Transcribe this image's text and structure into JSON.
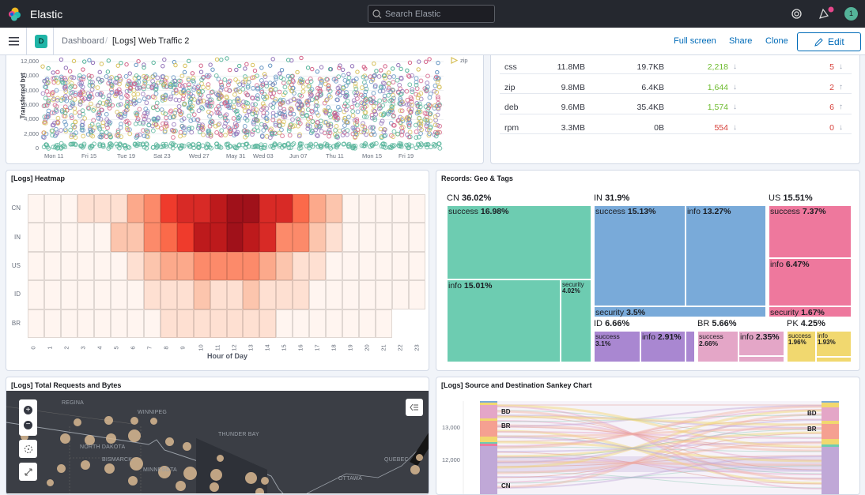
{
  "header": {
    "app_title": "Elastic",
    "search_placeholder": "Search Elastic",
    "avatar_initial": "1",
    "icons": [
      "elastic-logo",
      "help-icon",
      "newsfeed-icon"
    ]
  },
  "subheader": {
    "space_badge": "D",
    "breadcrumb": [
      "Dashboard",
      "[Logs] Web Traffic 2"
    ],
    "actions": {
      "full_screen": "Full screen",
      "share": "Share",
      "clone": "Clone",
      "edit": "Edit"
    }
  },
  "scatter_panel": {
    "chart_data": {
      "type": "scatter",
      "ylabel": "Transferred byt",
      "y_ticks": [
        "0",
        "2,000",
        "4,000",
        "6,000",
        "8,000",
        "10,000",
        "12,000"
      ],
      "ylim": [
        0,
        12500
      ],
      "x_ticks": [
        "Mon 11",
        "Fri 15",
        "Tue 19",
        "Sat 23",
        "Wed 27",
        "May 31",
        "Wed 03",
        "Jun 07",
        "Thu 11",
        "Mon 15",
        "Fri 19"
      ],
      "legend": [
        "zip"
      ],
      "legend_placement": "top-right",
      "colors": [
        "#54b399",
        "#6092c0",
        "#d36086",
        "#9170b8",
        "#d6bf57"
      ]
    }
  },
  "table_panel": {
    "rows": [
      {
        "ext": "css",
        "c1": "11.8MB",
        "c2": "19.7KB",
        "c3": "2,218",
        "c3_color": "#6dbb2e",
        "c3_trend": "down",
        "c4": "5",
        "c4_trend": "down"
      },
      {
        "ext": "zip",
        "c1": "9.8MB",
        "c2": "6.4KB",
        "c3": "1,644",
        "c3_color": "#6dbb2e",
        "c3_trend": "down",
        "c4": "2",
        "c4_trend": "up"
      },
      {
        "ext": "deb",
        "c1": "9.6MB",
        "c2": "35.4KB",
        "c3": "1,574",
        "c3_color": "#6dbb2e",
        "c3_trend": "down",
        "c4": "6",
        "c4_trend": "up"
      },
      {
        "ext": "rpm",
        "c1": "3.3MB",
        "c2": "0B",
        "c3": "554",
        "c3_color": "#d6403a",
        "c3_trend": "down",
        "c4": "0",
        "c4_trend": "down"
      }
    ]
  },
  "heatmap_panel": {
    "title": "[Logs] Heatmap",
    "chart_data": {
      "type": "heatmap",
      "xlabel": "Hour of Day",
      "categories_x": [
        "0",
        "1",
        "2",
        "3",
        "4",
        "5",
        "6",
        "7",
        "8",
        "9",
        "10",
        "11",
        "12",
        "13",
        "14",
        "15",
        "16",
        "17",
        "18",
        "19",
        "20",
        "21",
        "22",
        "23"
      ],
      "categories_y": [
        "CN",
        "IN",
        "US",
        "ID",
        "BR"
      ],
      "intensity_scale": [
        0,
        9
      ],
      "values": [
        [
          0,
          0,
          0,
          1,
          1,
          1,
          3,
          4,
          6,
          7,
          7,
          8,
          9,
          9,
          7,
          7,
          5,
          3,
          2,
          0,
          0,
          0,
          0,
          0
        ],
        [
          0,
          0,
          0,
          0,
          0,
          2,
          2,
          4,
          5,
          6,
          8,
          8,
          9,
          8,
          7,
          4,
          4,
          2,
          1,
          0,
          0,
          0,
          0,
          0
        ],
        [
          0,
          0,
          0,
          0,
          0,
          0,
          1,
          2,
          3,
          3,
          4,
          4,
          4,
          4,
          3,
          2,
          1,
          1,
          0,
          0,
          0,
          0,
          0,
          0
        ],
        [
          0,
          0,
          0,
          0,
          0,
          0,
          0,
          1,
          1,
          1,
          2,
          1,
          1,
          2,
          1,
          1,
          1,
          0,
          0,
          0,
          0,
          0,
          0,
          0
        ],
        [
          0,
          0,
          0,
          0,
          0,
          0,
          0,
          0,
          1,
          1,
          1,
          1,
          1,
          1,
          1,
          0,
          0,
          0,
          0,
          0,
          0,
          0,
          null,
          null
        ]
      ]
    }
  },
  "treemap_panel": {
    "title": "Records: Geo & Tags",
    "groups": [
      {
        "name": "CN",
        "pct": "36.02%",
        "color": "#6dccb1",
        "cells": [
          {
            "name": "success",
            "pct": "16.98%"
          },
          {
            "name": "info",
            "pct": "15.01%"
          },
          {
            "name": "security",
            "pct": "4.02%"
          }
        ]
      },
      {
        "name": "IN",
        "pct": "31.9%",
        "color": "#79aad9",
        "cells": [
          {
            "name": "success",
            "pct": "15.13%"
          },
          {
            "name": "info",
            "pct": "13.27%"
          },
          {
            "name": "security",
            "pct": "3.5%"
          }
        ]
      },
      {
        "name": "US",
        "pct": "15.51%",
        "color": "#ee789d",
        "cells": [
          {
            "name": "success",
            "pct": "7.37%"
          },
          {
            "name": "info",
            "pct": "6.47%"
          },
          {
            "name": "security",
            "pct": "1.67%"
          }
        ]
      },
      {
        "name": "ID",
        "pct": "6.66%",
        "color": "#a987d1",
        "cells": [
          {
            "name": "success",
            "pct": "3.1%"
          },
          {
            "name": "info",
            "pct": "2.91%"
          }
        ]
      },
      {
        "name": "BR",
        "pct": "5.66%",
        "color": "#e4a6c7",
        "cells": [
          {
            "name": "success",
            "pct": "2.66%"
          },
          {
            "name": "info",
            "pct": "2.35%"
          }
        ]
      },
      {
        "name": "PK",
        "pct": "4.25%",
        "color": "#f1d86f",
        "cells": [
          {
            "name": "success",
            "pct": "1.96%"
          },
          {
            "name": "info",
            "pct": "1.93%"
          }
        ]
      }
    ]
  },
  "map_panel": {
    "title": "[Logs] Total Requests and Bytes",
    "cities": [
      "REGINA",
      "WINNIPEG",
      "THUNDER BAY",
      "NORTH DAKOTA",
      "BISMARCK",
      "MINNESOTA",
      "QUEBEC",
      "OTTAWA"
    ]
  },
  "sankey_panel": {
    "title": "[Logs] Source and Destination Sankey Chart",
    "y_ticks": [
      "13,000",
      "12,000"
    ],
    "left_labels": [
      "BD",
      "BR",
      "CN"
    ],
    "right_labels": [
      "BD",
      "BR"
    ]
  }
}
